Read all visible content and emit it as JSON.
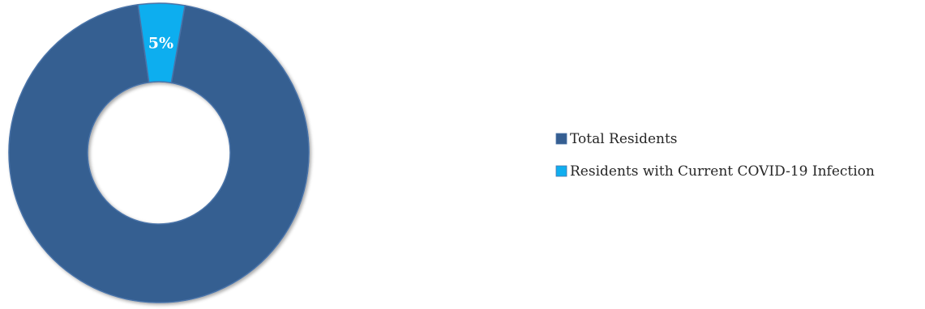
{
  "chart_data": {
    "type": "pie",
    "donut": true,
    "title": "",
    "categories": [
      "Total Residents",
      "Residents with Current COVID-19 Infection"
    ],
    "values": [
      95,
      5
    ],
    "unit": "%",
    "colors": [
      "#355E91",
      "#10AEEF"
    ],
    "data_labels": [
      "",
      "5%"
    ],
    "legend_position": "right"
  }
}
